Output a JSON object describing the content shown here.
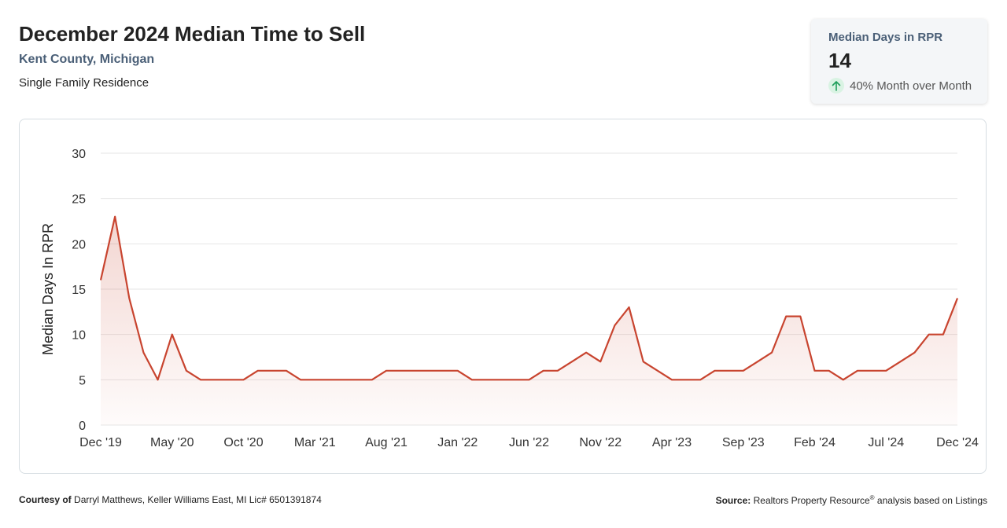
{
  "header": {
    "title": "December 2024 Median Time to Sell",
    "location": "Kent County, Michigan",
    "property_type": "Single Family Residence"
  },
  "kpi": {
    "label": "Median Days in RPR",
    "value": "14",
    "change": "40% Month over Month",
    "trend_icon": "arrow-up-icon",
    "trend_color": "#1e9e5a"
  },
  "footer": {
    "courtesy_label": "Courtesy of",
    "courtesy_text": "Darryl Matthews, Keller Williams East, MI Lic# 6501391874",
    "source_label": "Source:",
    "source_text_a": "Realtors Property Resource",
    "source_mark": "®",
    "source_text_b": " analysis based on Listings"
  },
  "colors": {
    "line": "#c8442f",
    "grid": "#e6e6e6",
    "axis_text": "#333333"
  },
  "chart_data": {
    "type": "area",
    "title": "",
    "ylabel": "Median Days In RPR",
    "ylim": [
      0,
      30
    ],
    "yticks": [
      0,
      5,
      10,
      15,
      20,
      25,
      30
    ],
    "xtick_labels": [
      "Dec '19",
      "May '20",
      "Oct '20",
      "Mar '21",
      "Aug '21",
      "Jan '22",
      "Jun '22",
      "Nov '22",
      "Apr '23",
      "Sep '23",
      "Feb '24",
      "Jul '24",
      "Dec '24"
    ],
    "grid": true,
    "legend": "none",
    "x": [
      "Dec '19",
      "Jan '20",
      "Feb '20",
      "Mar '20",
      "Apr '20",
      "May '20",
      "Jun '20",
      "Jul '20",
      "Aug '20",
      "Sep '20",
      "Oct '20",
      "Nov '20",
      "Dec '20",
      "Jan '21",
      "Feb '21",
      "Mar '21",
      "Apr '21",
      "May '21",
      "Jun '21",
      "Jul '21",
      "Aug '21",
      "Sep '21",
      "Oct '21",
      "Nov '21",
      "Dec '21",
      "Jan '22",
      "Feb '22",
      "Mar '22",
      "Apr '22",
      "May '22",
      "Jun '22",
      "Jul '22",
      "Aug '22",
      "Sep '22",
      "Oct '22",
      "Nov '22",
      "Dec '22",
      "Jan '23",
      "Feb '23",
      "Mar '23",
      "Apr '23",
      "May '23",
      "Jun '23",
      "Jul '23",
      "Aug '23",
      "Sep '23",
      "Oct '23",
      "Nov '23",
      "Dec '23",
      "Jan '24",
      "Feb '24",
      "Mar '24",
      "Apr '24",
      "May '24",
      "Jun '24",
      "Jul '24",
      "Aug '24",
      "Sep '24",
      "Oct '24",
      "Nov '24",
      "Dec '24"
    ],
    "series": [
      {
        "values": [
          16,
          23,
          14,
          8,
          5,
          10,
          6,
          5,
          5,
          5,
          5,
          6,
          6,
          6,
          5,
          5,
          5,
          5,
          5,
          5,
          6,
          6,
          6,
          6,
          6,
          6,
          5,
          5,
          5,
          5,
          5,
          6,
          6,
          7,
          8,
          7,
          11,
          13,
          7,
          6,
          5,
          5,
          5,
          6,
          6,
          6,
          7,
          8,
          12,
          12,
          6,
          6,
          5,
          6,
          6,
          6,
          7,
          8,
          10,
          10,
          14
        ]
      }
    ]
  }
}
